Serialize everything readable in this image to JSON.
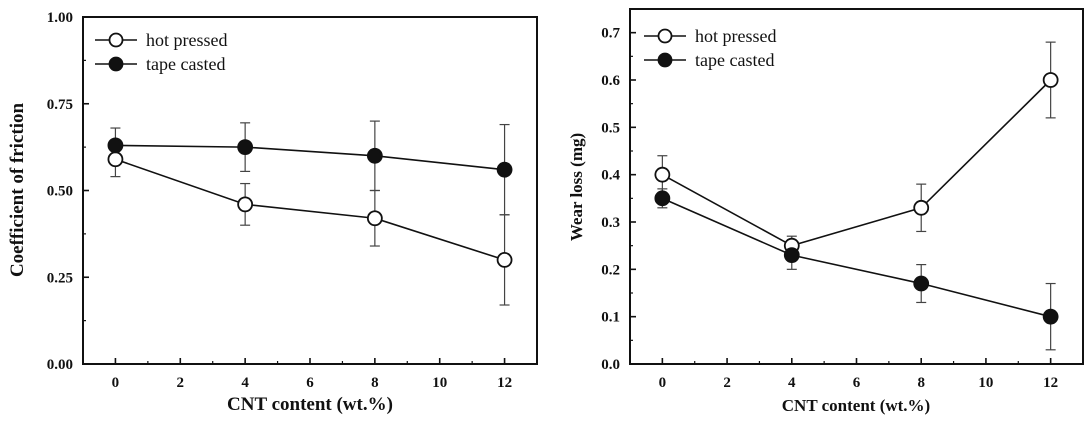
{
  "chart_data": [
    {
      "type": "line",
      "xlabel": "CNT content (wt.%)",
      "ylabel": "Coefficient of friction",
      "xlim": [
        -1,
        13
      ],
      "ylim": [
        0,
        1.0
      ],
      "x_ticks": [
        0,
        2,
        4,
        6,
        8,
        10,
        12
      ],
      "x_tick_labels": [
        "0",
        "2",
        "4",
        "6",
        "8",
        "10",
        "12"
      ],
      "y_ticks": [
        0,
        0.25,
        0.5,
        0.75,
        1.0
      ],
      "y_tick_labels": [
        "0.00",
        "0.25",
        "0.50",
        "0.75",
        "1.00"
      ],
      "legend_position": "top-left",
      "x": [
        0,
        4,
        8,
        12
      ],
      "series": [
        {
          "name": "hot pressed",
          "marker": "open-circle",
          "values": [
            0.59,
            0.46,
            0.42,
            0.3
          ],
          "err_low": [
            0.05,
            0.06,
            0.08,
            0.13
          ],
          "err_high": [
            0.05,
            0.06,
            0.08,
            0.13
          ]
        },
        {
          "name": "tape casted",
          "marker": "filled-circle",
          "values": [
            0.63,
            0.625,
            0.6,
            0.56
          ],
          "err_low": [
            0.05,
            0.07,
            0.1,
            0.13
          ],
          "err_high": [
            0.05,
            0.07,
            0.1,
            0.13
          ]
        }
      ]
    },
    {
      "type": "line",
      "xlabel": "CNT content (wt.%)",
      "ylabel": "Wear loss (mg)",
      "xlim": [
        -1,
        13
      ],
      "ylim": [
        0,
        0.75
      ],
      "x_ticks": [
        0,
        2,
        4,
        6,
        8,
        10,
        12
      ],
      "x_tick_labels": [
        "0",
        "2",
        "4",
        "6",
        "8",
        "10",
        "12"
      ],
      "y_ticks": [
        0,
        0.1,
        0.2,
        0.3,
        0.4,
        0.5,
        0.6,
        0.7
      ],
      "y_tick_labels": [
        "0.0",
        "0.1",
        "0.2",
        "0.3",
        "0.4",
        "0.5",
        "0.6",
        "0.7"
      ],
      "legend_position": "top-left",
      "x": [
        0,
        4,
        8,
        12
      ],
      "series": [
        {
          "name": "hot pressed",
          "marker": "open-circle",
          "values": [
            0.4,
            0.25,
            0.33,
            0.6
          ],
          "err_low": [
            0.04,
            0.02,
            0.05,
            0.08
          ],
          "err_high": [
            0.04,
            0.02,
            0.05,
            0.08
          ]
        },
        {
          "name": "tape casted",
          "marker": "filled-circle",
          "values": [
            0.35,
            0.23,
            0.17,
            0.1
          ],
          "err_low": [
            0.02,
            0.03,
            0.04,
            0.07
          ],
          "err_high": [
            0.02,
            0.03,
            0.04,
            0.07
          ]
        }
      ]
    }
  ]
}
